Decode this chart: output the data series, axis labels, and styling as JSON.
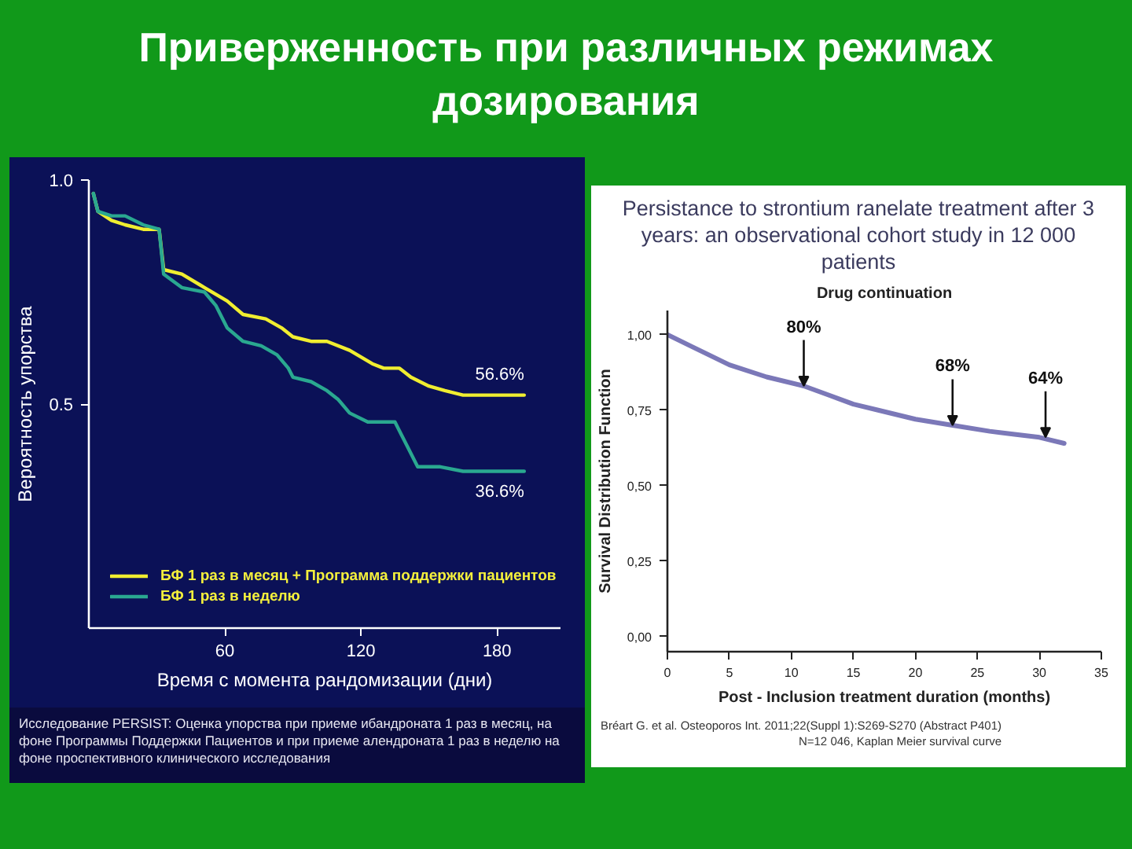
{
  "chart_data": [
    {
      "type": "line",
      "title": "Приверженность при различных режимах дозирования",
      "xlabel": "Время с момента рандомизации (дни)",
      "ylabel": "Вероятность упорства",
      "xlim": [
        0,
        208
      ],
      "ylim": [
        0,
        1.0
      ],
      "xticks": [
        60,
        120,
        180
      ],
      "yticks": [
        {
          "value": 0.5,
          "label": "0.5"
        },
        {
          "value": 1.0,
          "label": "1.0"
        }
      ],
      "legend": "bottom left",
      "series": [
        {
          "name": "БФ 1 раз в месяц + Программа поддержки пациентов",
          "color": "#f0ee30",
          "x": [
            2,
            4,
            10,
            16,
            24,
            31,
            33,
            41,
            51,
            61,
            68,
            78,
            85,
            90,
            98,
            105,
            115,
            125,
            130,
            137,
            142,
            150,
            157,
            165,
            177,
            192
          ],
          "values": [
            0.97,
            0.93,
            0.91,
            0.9,
            0.89,
            0.89,
            0.8,
            0.79,
            0.76,
            0.73,
            0.7,
            0.69,
            0.67,
            0.65,
            0.64,
            0.64,
            0.62,
            0.59,
            0.58,
            0.58,
            0.56,
            0.54,
            0.53,
            0.52,
            0.52,
            0.52
          ]
        },
        {
          "name": "БФ 1 раз в неделю",
          "color": "#2aa890",
          "x": [
            2,
            4,
            10,
            16,
            24,
            31,
            33,
            41,
            51,
            56,
            61,
            68,
            76,
            83,
            88,
            90,
            98,
            105,
            110,
            115,
            123,
            135,
            140,
            145,
            155,
            165,
            177,
            192
          ],
          "values": [
            0.97,
            0.93,
            0.92,
            0.92,
            0.9,
            0.89,
            0.79,
            0.76,
            0.75,
            0.72,
            0.67,
            0.64,
            0.63,
            0.61,
            0.58,
            0.56,
            0.55,
            0.53,
            0.51,
            0.48,
            0.46,
            0.46,
            0.41,
            0.36,
            0.36,
            0.35,
            0.35,
            0.35
          ]
        }
      ],
      "annotations": [
        {
          "text": "56.6%",
          "x": 192,
          "y": 0.52
        },
        {
          "text": "36.6%",
          "x": 192,
          "y": 0.35
        },
        "Исследование PERSIST: Оценка упорства при приеме ибандроната 1 раз в месяц, на фоне Программы Поддержки Пациентов и при приеме алендроната 1 раз в неделю на фоне проспективного клинического исследования"
      ]
    },
    {
      "type": "line",
      "title": "Persistance to strontium ranelate treatment after 3 years: an observational cohort study in 12 000 patients",
      "subtitle": "Drug continuation",
      "xlabel": "Post - Inclusion treatment duration (months)",
      "ylabel": "Survival Distribution Function",
      "xlim": [
        0,
        35
      ],
      "ylim": [
        -0.05,
        1.08
      ],
      "xticks": [
        0,
        5,
        10,
        15,
        20,
        25,
        30,
        35
      ],
      "yticks": [
        {
          "value": 0,
          "label": "0,00"
        },
        {
          "value": 0.25,
          "label": "0,25"
        },
        {
          "value": 0.5,
          "label": "0,50"
        },
        {
          "value": 0.75,
          "label": "0,75"
        },
        {
          "value": 1,
          "label": "1,00"
        }
      ],
      "series": [
        {
          "color": "#7b78b8",
          "x": [
            0,
            2,
            5,
            8,
            11,
            13,
            15,
            17,
            20,
            23,
            26,
            28,
            30,
            32
          ],
          "values": [
            1.0,
            0.96,
            0.9,
            0.86,
            0.83,
            0.8,
            0.77,
            0.75,
            0.72,
            0.7,
            0.68,
            0.67,
            0.66,
            0.64
          ]
        }
      ],
      "annotations": [
        {
          "text": "80%",
          "x": 11,
          "y": 0.83
        },
        {
          "text": "68%",
          "x": 23,
          "y": 0.7
        },
        {
          "text": "64%",
          "x": 30.5,
          "y": 0.66
        },
        "Bréart G. et al. Osteoporos Int. 2011;22(Suppl 1):S269-S270 (Abstract P401)",
        "N=12 046, Kaplan Meier survival curve"
      ]
    }
  ]
}
